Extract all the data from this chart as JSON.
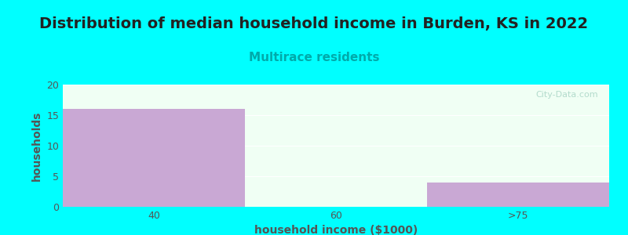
{
  "title": "Distribution of median household income in Burden, KS in 2022",
  "subtitle": "Multirace residents",
  "xlabel": "household income ($1000)",
  "ylabel": "households",
  "background_color": "#00FFFF",
  "plot_bg_color": "#F0FFF4",
  "bar_categories": [
    "40",
    "60",
    ">75"
  ],
  "bar_values": [
    16,
    0,
    4
  ],
  "bar_color": "#C9A8D4",
  "ylim": [
    0,
    20
  ],
  "yticks": [
    0,
    5,
    10,
    15,
    20
  ],
  "title_fontsize": 14,
  "subtitle_fontsize": 11,
  "subtitle_color": "#00AAAA",
  "axis_label_fontsize": 10,
  "tick_fontsize": 9,
  "watermark_text": "City-Data.com",
  "title_color": "#222222",
  "axis_label_color": "#555555",
  "tick_color": "#555555",
  "grid_color": "#FFFFFF"
}
